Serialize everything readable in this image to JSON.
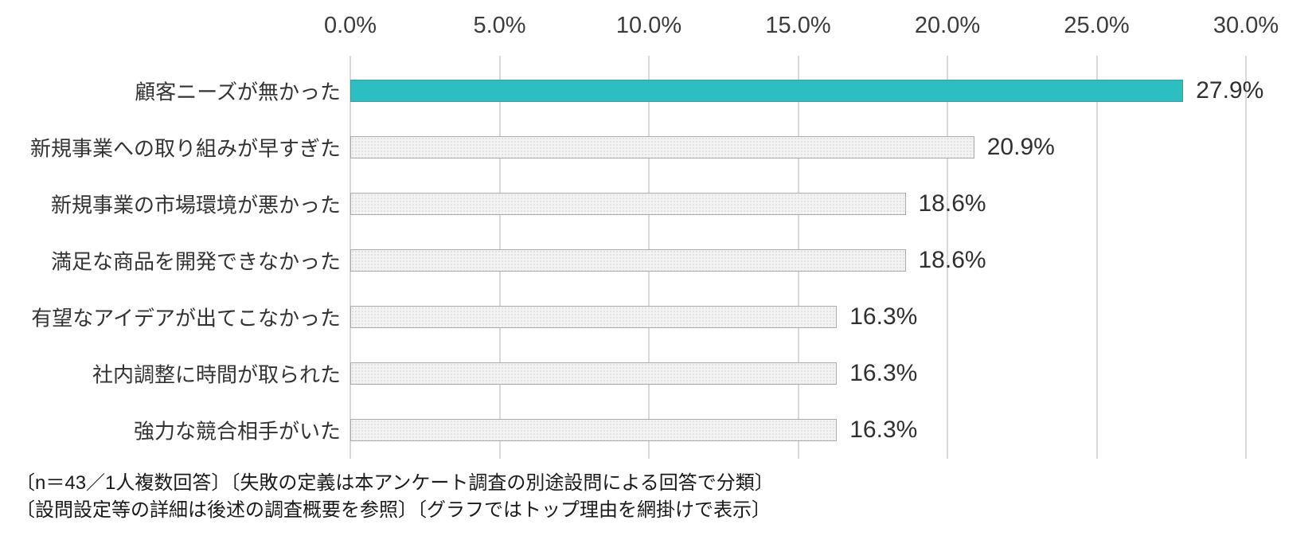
{
  "chart_data": {
    "type": "bar",
    "orientation": "horizontal",
    "title": "",
    "categories": [
      "顧客ニーズが無かった",
      "新規事業への取り組みが早すぎた",
      "新規事業の市場環境が悪かった",
      "満足な商品を開発できなかった",
      "有望なアイデアが出てこなかった",
      "社内調整に時間が取られた",
      "強力な競合相手がいた"
    ],
    "values": [
      27.9,
      20.9,
      18.6,
      18.6,
      16.3,
      16.3,
      16.3
    ],
    "value_labels": [
      "27.9%",
      "20.9%",
      "18.6%",
      "18.6%",
      "16.3%",
      "16.3%",
      "16.3%"
    ],
    "highlight_index": 0,
    "x_axis": {
      "position": "top",
      "min": 0,
      "max": 30,
      "ticks": [
        "0.0%",
        "5.0%",
        "10.0%",
        "15.0%",
        "20.0%",
        "25.0%",
        "30.0%"
      ]
    },
    "grid": true,
    "legend": false,
    "colors": {
      "highlight_bar": "#2CBEC0",
      "default_bar": "#F3F3F3",
      "bar_border": "#ABABAB",
      "gridline": "#D9D9D9",
      "text": "#303030"
    }
  },
  "footnotes": {
    "line1": "〔n＝43／1人複数回答〕〔失敗の定義は本アンケート調査の別途設問による回答で分類〕",
    "line2": "〔設問設定等の詳細は後述の調査概要を参照〕〔グラフではトップ理由を網掛けで表示〕"
  }
}
